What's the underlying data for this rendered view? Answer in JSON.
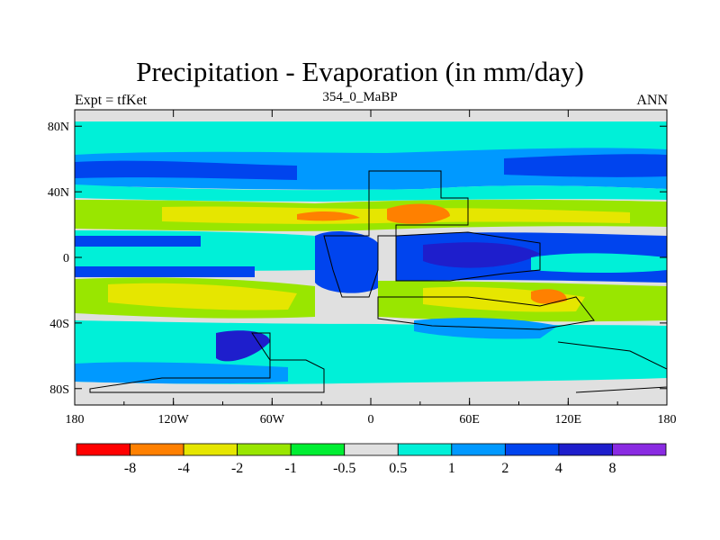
{
  "header": {
    "title": "Precipitation - Evaporation (in mm/day)",
    "subtitle": "354_0_MaBP",
    "left_label": "Expt = tfKet",
    "right_label": "ANN"
  },
  "axes": {
    "lat_ticks": [
      "80N",
      "40N",
      "0",
      "40S",
      "80S"
    ],
    "lat_values": [
      80,
      40,
      0,
      -40,
      -80
    ],
    "lon_ticks": [
      "180",
      "120W",
      "60W",
      "0",
      "60E",
      "120E",
      "180"
    ],
    "lon_values": [
      -180,
      -120,
      -60,
      0,
      60,
      120,
      180
    ],
    "lon_range": [
      -180,
      180
    ],
    "lat_range": [
      -90,
      90
    ]
  },
  "colorbar": {
    "colors": [
      "#ff0000",
      "#ff8000",
      "#e6e600",
      "#99e600",
      "#00ee33",
      "#e0e0e0",
      "#00f0d8",
      "#0099ff",
      "#0044ee",
      "#1e1ecc",
      "#8a2be2"
    ],
    "labels": [
      "-8",
      "-4",
      "-2",
      "-1",
      "-0.5",
      "0.5",
      "1",
      "2",
      "4",
      "8"
    ]
  }
}
